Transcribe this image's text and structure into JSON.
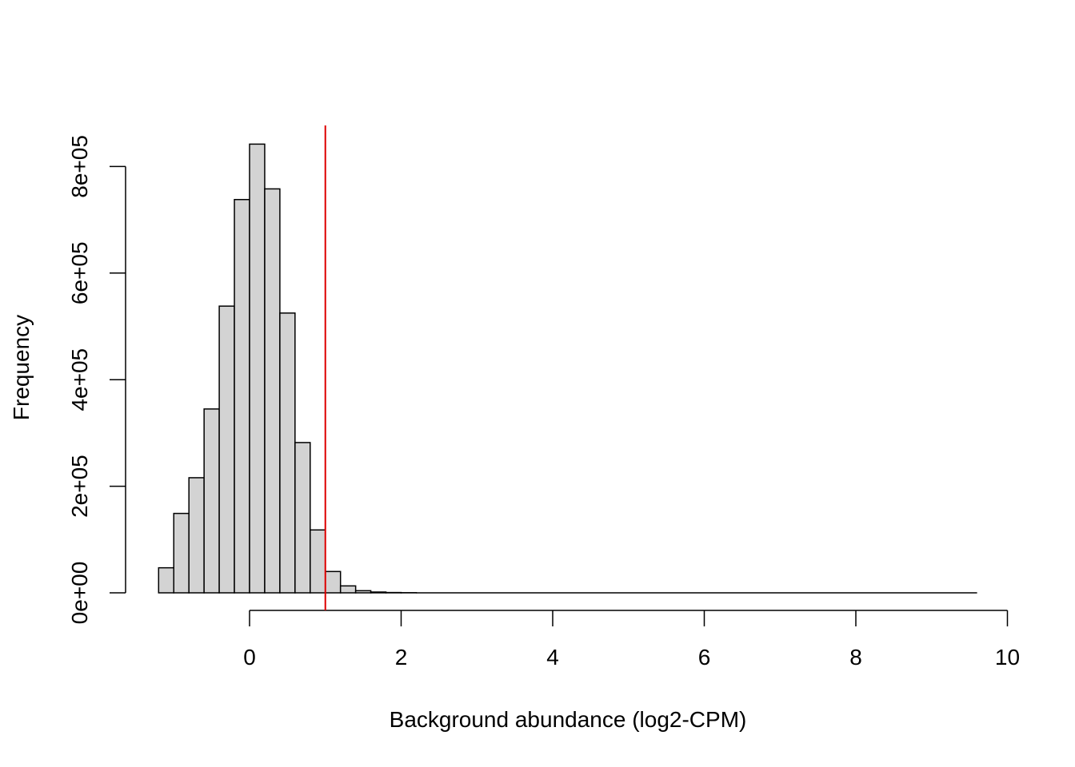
{
  "chart_data": {
    "type": "histogram",
    "title": "",
    "xlabel": "Background abundance (log2-CPM)",
    "ylabel": "Frequency",
    "xlim": [
      -1.2,
      10
    ],
    "ylim": [
      0,
      880000
    ],
    "x_ticks": [
      0,
      2,
      4,
      6,
      8,
      10
    ],
    "x_tick_labels": [
      "0",
      "2",
      "4",
      "6",
      "8",
      "10"
    ],
    "y_ticks": [
      0,
      200000,
      400000,
      600000,
      800000
    ],
    "y_tick_labels": [
      "0e+00",
      "2e+05",
      "4e+05",
      "6e+05",
      "8e+05"
    ],
    "bin_width": 0.2,
    "bins": [
      {
        "x0": -1.2,
        "x1": -1.0,
        "count": 47000
      },
      {
        "x0": -1.0,
        "x1": -0.8,
        "count": 149000
      },
      {
        "x0": -0.8,
        "x1": -0.6,
        "count": 216000
      },
      {
        "x0": -0.6,
        "x1": -0.4,
        "count": 345000
      },
      {
        "x0": -0.4,
        "x1": -0.2,
        "count": 538000
      },
      {
        "x0": -0.2,
        "x1": 0.0,
        "count": 738000
      },
      {
        "x0": 0.0,
        "x1": 0.2,
        "count": 842000
      },
      {
        "x0": 0.2,
        "x1": 0.4,
        "count": 758000
      },
      {
        "x0": 0.4,
        "x1": 0.6,
        "count": 525000
      },
      {
        "x0": 0.6,
        "x1": 0.8,
        "count": 282000
      },
      {
        "x0": 0.8,
        "x1": 1.0,
        "count": 118000
      },
      {
        "x0": 1.0,
        "x1": 1.2,
        "count": 40000
      },
      {
        "x0": 1.2,
        "x1": 1.4,
        "count": 13000
      },
      {
        "x0": 1.4,
        "x1": 1.6,
        "count": 4000
      },
      {
        "x0": 1.6,
        "x1": 1.8,
        "count": 1500
      },
      {
        "x0": 1.8,
        "x1": 2.0,
        "count": 600
      },
      {
        "x0": 2.0,
        "x1": 2.2,
        "count": 300
      }
    ],
    "tail": {
      "x_start": 2.2,
      "x_end": 9.6,
      "count_approx": 0
    },
    "threshold_line": {
      "x": 1.0,
      "color": "#dd0000"
    },
    "bar_fill": "#d3d3d3",
    "bar_stroke": "#000000",
    "grid": false
  }
}
